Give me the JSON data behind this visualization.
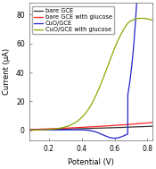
{
  "xlabel": "Potential (V)",
  "ylabel": "Current (μA)",
  "xlim": [
    0.08,
    0.83
  ],
  "ylim": [
    -7,
    88
  ],
  "xticks": [
    0.2,
    0.4,
    0.6,
    0.8
  ],
  "yticks": [
    0,
    20,
    40,
    60,
    80
  ],
  "legend_labels": [
    "bare GCE",
    "bare GCE with glucose",
    "CuO/GCE",
    "CuO/GCE with glucose"
  ],
  "colors": [
    "#333333",
    "#ff2222",
    "#2222cc",
    "#88aa00"
  ],
  "background": "#ffffff",
  "figsize": [
    1.75,
    1.89
  ],
  "dpi": 100
}
